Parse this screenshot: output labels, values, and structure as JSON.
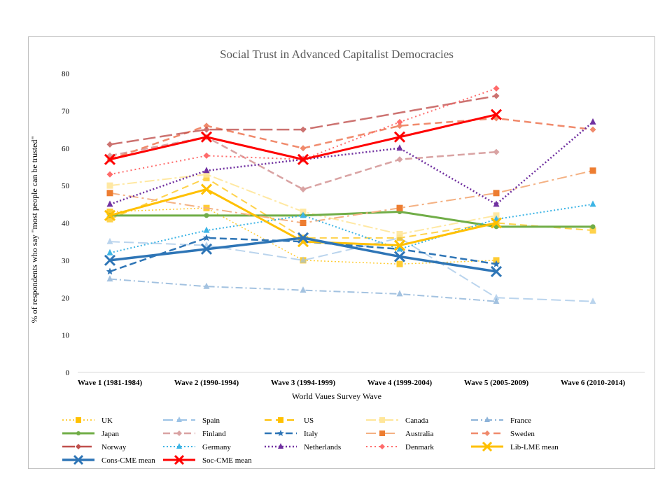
{
  "chart_data": {
    "type": "line",
    "title": "Social Trust in Advanced Capitalist Democracies",
    "xlabel": "World Vaues Survey Wave",
    "ylabel": "% of respondents who say \"most people can be trusted\"",
    "ylim": [
      0,
      80
    ],
    "yticks": [
      0,
      10,
      20,
      30,
      40,
      50,
      60,
      70,
      80
    ],
    "grid": "none",
    "legend_position": "bottom",
    "categories": [
      "Wave 1 (1981-1984)",
      "Wave 2 (1990-1994)",
      "Wave 3 (1994-1999)",
      "Wave 4 (1999-2004)",
      "Wave 5 (2005-2009)",
      "Wave 6 (2010-2014)"
    ],
    "series": [
      {
        "name": "UK",
        "values": [
          43,
          44,
          30,
          29,
          30,
          null
        ],
        "color": "#ffc000",
        "dash": "2,3",
        "width": 1.5,
        "marker": "square",
        "opacity": 0.8
      },
      {
        "name": "Spain",
        "values": [
          35,
          34,
          30,
          36,
          20,
          19
        ],
        "color": "#9dc3e6",
        "dash": "14,6",
        "width": 2,
        "marker": "triangle",
        "opacity": 0.7
      },
      {
        "name": "US",
        "values": [
          41,
          52,
          36,
          36,
          40,
          38
        ],
        "color": "#ffc000",
        "dash": "10,6",
        "width": 2,
        "marker": "square",
        "opacity": 0.7
      },
      {
        "name": "Canada",
        "values": [
          50,
          53,
          43,
          37,
          42,
          null
        ],
        "color": "#ffe699",
        "dash": "14,4,3,4",
        "width": 2,
        "marker": "square",
        "opacity": 0.9
      },
      {
        "name": "France",
        "values": [
          25,
          23,
          22,
          21,
          19,
          null
        ],
        "color": "#8db3d9",
        "dash": "10,4,2,4",
        "width": 2,
        "marker": "triangle",
        "opacity": 0.8
      },
      {
        "name": "Japan",
        "values": [
          42,
          42,
          42,
          43,
          39,
          39
        ],
        "color": "#70ad47",
        "dash": "",
        "width": 3,
        "marker": "circle",
        "opacity": 1
      },
      {
        "name": "Finland",
        "values": [
          58,
          63,
          49,
          57,
          59,
          null
        ],
        "color": "#d9a3a3",
        "dash": "10,5",
        "width": 2.5,
        "marker": "diamond",
        "opacity": 1
      },
      {
        "name": "Italy",
        "values": [
          27,
          36,
          35,
          33,
          29,
          null
        ],
        "color": "#2e75b6",
        "dash": "10,5",
        "width": 2.5,
        "marker": "star",
        "opacity": 1
      },
      {
        "name": "Australia",
        "values": [
          48,
          null,
          40,
          44,
          48,
          54
        ],
        "color": "#f4b183",
        "dash": "14,5,3,5",
        "width": 2,
        "marker": "square-orange",
        "opacity": 1
      },
      {
        "name": "Sweden",
        "values": [
          57,
          66,
          60,
          66,
          68,
          65
        ],
        "color": "#f08a6c",
        "dash": "10,6",
        "width": 2.5,
        "marker": "diamond",
        "opacity": 1
      },
      {
        "name": "Norway",
        "values": [
          61,
          65,
          65,
          null,
          74,
          null
        ],
        "color": "#c0504d",
        "dash": "18,6",
        "width": 2.5,
        "marker": "diamond",
        "opacity": 0.8
      },
      {
        "name": "Germany",
        "values": [
          32,
          38,
          42,
          33,
          41,
          45
        ],
        "color": "#3cb4e5",
        "dash": "2,3",
        "width": 2,
        "marker": "triangle",
        "opacity": 1
      },
      {
        "name": "Netherlands",
        "values": [
          45,
          54,
          57,
          60,
          45,
          67
        ],
        "color": "#7030a0",
        "dash": "2,3",
        "width": 2.5,
        "marker": "triangle",
        "opacity": 1
      },
      {
        "name": "Denmark",
        "values": [
          53,
          58,
          57,
          67,
          76,
          null
        ],
        "color": "#ff6b6b",
        "dash": "2,4",
        "width": 2,
        "marker": "diamond",
        "opacity": 1
      },
      {
        "name": "Lib-LME mean",
        "values": [
          42,
          49,
          35,
          34,
          40,
          null
        ],
        "color": "#ffc000",
        "dash": "",
        "width": 3,
        "marker": "x",
        "opacity": 1
      },
      {
        "name": "Cons-CME mean",
        "values": [
          30,
          33,
          36,
          31,
          27,
          null
        ],
        "color": "#2e75b6",
        "dash": "",
        "width": 3.5,
        "marker": "x",
        "opacity": 1
      },
      {
        "name": "Soc-CME mean",
        "values": [
          57,
          63,
          57,
          63,
          69,
          null
        ],
        "color": "#ff0000",
        "dash": "",
        "width": 3,
        "marker": "x",
        "opacity": 1
      }
    ]
  }
}
